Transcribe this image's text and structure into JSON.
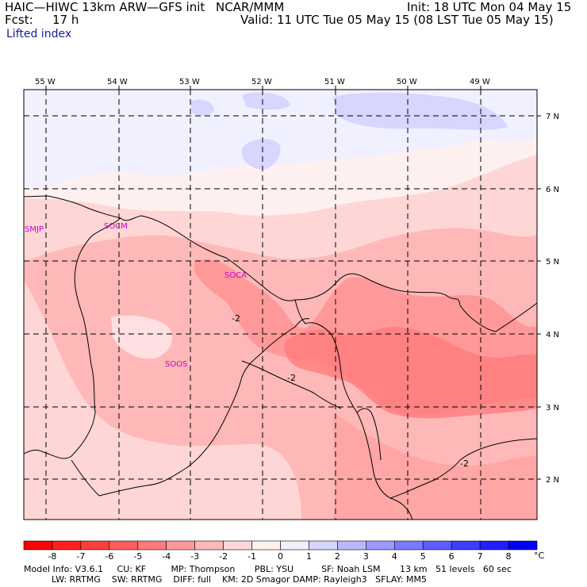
{
  "header": {
    "model_line": "HAIC—HIWC 13km ARW—GFS init",
    "org": "NCAR/MMM",
    "init": "Init: 18 UTC Mon 04 May 15",
    "fcst_label": "Fcst:",
    "fcst_value": "17 h",
    "valid": "Valid: 11 UTC Tue 05 May 15 (08 LST Tue 05 May 15)",
    "field": "Lifted index"
  },
  "map": {
    "lon_labels": [
      "55 W",
      "54 W",
      "53 W",
      "52 W",
      "51 W",
      "50 W",
      "49 W"
    ],
    "lat_labels": [
      "7 N",
      "6 N",
      "5 N",
      "4 N",
      "3 N",
      "2 N"
    ],
    "stations": [
      "SMJP",
      "SOCM",
      "SOCA",
      "SOOS"
    ],
    "contour_labels": [
      "-2",
      "-2",
      "-2"
    ]
  },
  "colorbar": {
    "ticks": [
      "-8",
      "-7",
      "-6",
      "-5",
      "-4",
      "-3",
      "-2",
      "-1",
      "0",
      "1",
      "2",
      "3",
      "4",
      "5",
      "6",
      "7",
      "8"
    ],
    "unit": "°C",
    "colors": [
      "#ff0000",
      "#ff1f1f",
      "#ff3d3d",
      "#ff5c5c",
      "#ff7a7a",
      "#ff9999",
      "#ffb8b8",
      "#ffd6d6",
      "#fff0f0",
      "#f0f0ff",
      "#d6d6ff",
      "#b8b8ff",
      "#9999ff",
      "#7a7aff",
      "#5c5cff",
      "#3d3dff",
      "#1f1fff",
      "#0000ff"
    ]
  },
  "footer": {
    "line1": "Model Info: V3.6.1     CU: KF         MP: Thompson       PBL: YSU          SF: Noah LSM       13 km   51 levels   60 sec",
    "line2": "          LW: RRTMG    SW: RRTMG    DIFF: full    KM: 2D Smagor DAMP: Rayleigh3   SFLAY: MM5"
  }
}
